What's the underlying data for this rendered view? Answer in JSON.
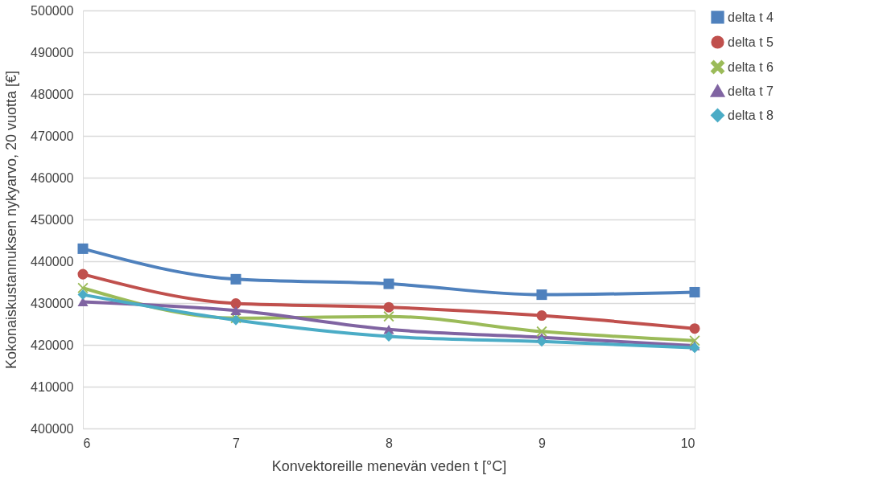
{
  "chart_data": {
    "type": "line",
    "xlabel": "Konvektoreille menevän veden t [°C]",
    "ylabel": "Kokonaiskustannuksen nykyarvo, 20 vuotta [€]",
    "x": [
      6,
      7,
      8,
      9,
      10
    ],
    "xlim": [
      6,
      10
    ],
    "xticks": [
      6,
      7,
      8,
      9,
      10
    ],
    "ylim": [
      400000,
      500000
    ],
    "yticks": [
      400000,
      410000,
      420000,
      430000,
      440000,
      450000,
      460000,
      470000,
      480000,
      490000,
      500000
    ],
    "grid": "y",
    "legend": "right",
    "line_style": "solid",
    "series": [
      {
        "name": "delta t 4",
        "color": "#4f81bd",
        "marker": "square",
        "values": [
          443000,
          435700,
          434600,
          432000,
          432600
        ]
      },
      {
        "name": "delta t 5",
        "color": "#c0504d",
        "marker": "circle",
        "values": [
          436900,
          429900,
          429000,
          427000,
          423900
        ]
      },
      {
        "name": "delta t 6",
        "color": "#9bbb59",
        "marker": "cross",
        "values": [
          433600,
          426400,
          426800,
          423200,
          421000
        ]
      },
      {
        "name": "delta t 7",
        "color": "#8064a2",
        "marker": "triangle",
        "values": [
          430300,
          428200,
          423700,
          421800,
          419800
        ]
      },
      {
        "name": "delta t 8",
        "color": "#4bacc6",
        "marker": "diamond",
        "values": [
          432000,
          425900,
          422000,
          420800,
          419300
        ]
      }
    ]
  }
}
